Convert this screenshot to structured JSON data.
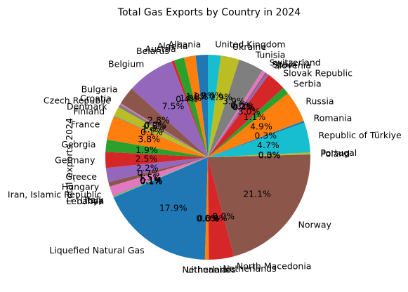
{
  "chart_data": {
    "type": "pie",
    "title": "Total Gas Exports by Country in 2024",
    "ylabel": "total_exports_2024",
    "start_angle_deg": 90,
    "counterclock": true,
    "slices": [
      {
        "label": "Albania",
        "value": 1.9,
        "pct": "1.9%",
        "color": "#1f77b4"
      },
      {
        "label": "Algeria",
        "value": 1.8,
        "pct": "1.8%",
        "color": "#ff7f0e"
      },
      {
        "label": "Austria",
        "value": 1.6,
        "pct": "1.6%",
        "color": "#2ca02c"
      },
      {
        "label": "Belarus",
        "value": 0.4,
        "pct": "0.4%",
        "color": "#d62728"
      },
      {
        "label": "Belgium",
        "value": 7.5,
        "pct": "7.5%",
        "color": "#9467bd"
      },
      {
        "label": "Bulgaria",
        "value": 2.8,
        "pct": "2.8%",
        "color": "#8c564b"
      },
      {
        "label": "Croatia",
        "value": 0.2,
        "pct": "0.2%",
        "color": "#e377c2"
      },
      {
        "label": "Czech Republic",
        "value": 0.5,
        "pct": "0.5%",
        "color": "#7f7f7f"
      },
      {
        "label": "Denmark",
        "value": 1.4,
        "pct": "1.4%",
        "color": "#bcbd22"
      },
      {
        "label": "Finland",
        "value": 0.1,
        "pct": "0.1%",
        "color": "#17becf"
      },
      {
        "label": "France",
        "value": 3.8,
        "pct": "3.8%",
        "color": "#ff7f0e"
      },
      {
        "label": "Georgia",
        "value": 1.9,
        "pct": "1.9%",
        "color": "#2ca02c"
      },
      {
        "label": "Germany",
        "value": 2.5,
        "pct": "2.5%",
        "color": "#d62728"
      },
      {
        "label": "Greece",
        "value": 2.2,
        "pct": "2.2%",
        "color": "#9467bd"
      },
      {
        "label": "Hungary",
        "value": 0.7,
        "pct": "0.7%",
        "color": "#8c564b"
      },
      {
        "label": "Iran, Islamic Republic",
        "value": 1.5,
        "pct": "1.5%",
        "color": "#e377c2"
      },
      {
        "label": "Italy",
        "value": 0.1,
        "pct": "0.1%",
        "color": "#7f7f7f"
      },
      {
        "label": "Libya",
        "value": 0.1,
        "pct": "0.1%",
        "color": "#bcbd22"
      },
      {
        "label": "Lebanon",
        "value": 0.1,
        "pct": "0.1%",
        "color": "#17becf"
      },
      {
        "label": "Liquefied Natural Gas",
        "value": 17.9,
        "pct": "17.9%",
        "color": "#1f77b4"
      },
      {
        "label": "Lithuania",
        "value": 0.6,
        "pct": "0.6%",
        "color": "#ff7f0e"
      },
      {
        "label": "Netherlands",
        "value": 0.0,
        "pct": "0.0%",
        "color": "#2ca02c"
      },
      {
        "label": "Netherlands",
        "value": 3.9,
        "pct": "3.9%",
        "color": "#d62728"
      },
      {
        "label": "North Macedonia",
        "value": 0.0,
        "pct": "0.0%",
        "color": "#9467bd"
      },
      {
        "label": "Norway",
        "value": 21.1,
        "pct": "21.1%",
        "color": "#8c564b"
      },
      {
        "label": "Poland",
        "value": 0.0,
        "pct": "0.0%",
        "color": "#e377c2"
      },
      {
        "label": "Portugal",
        "value": 0.3,
        "pct": "0.3%",
        "color": "#bcbd22"
      },
      {
        "label": "Republic of Türkiye",
        "value": 4.7,
        "pct": "4.7%",
        "color": "#17becf"
      },
      {
        "label": "Romania",
        "value": 0.3,
        "pct": "0.3%",
        "color": "#1f77b4"
      },
      {
        "label": "Russia",
        "value": 4.9,
        "pct": "4.9%",
        "color": "#ff7f0e"
      },
      {
        "label": "Serbia",
        "value": 1.1,
        "pct": "1.1%",
        "color": "#2ca02c"
      },
      {
        "label": "Slovak Republic",
        "value": 3.0,
        "pct": "3.0%",
        "color": "#d62728"
      },
      {
        "label": "Slovenia",
        "value": 0.4,
        "pct": "0.4%",
        "color": "#9467bd"
      },
      {
        "label": "Spain",
        "value": 0.2,
        "pct": "0.2%",
        "color": "#8c564b"
      },
      {
        "label": "Switzerland",
        "value": 0.6,
        "pct": "0.6%",
        "color": "#e377c2"
      },
      {
        "label": "Tunisia",
        "value": 3.9,
        "pct": "3.9%",
        "color": "#7f7f7f"
      },
      {
        "label": "Ukraine",
        "value": 2.9,
        "pct": "2.9%",
        "color": "#bcbd22"
      },
      {
        "label": "United Kingdom",
        "value": 2.0,
        "pct": "2.0%",
        "color": "#17becf"
      }
    ]
  }
}
